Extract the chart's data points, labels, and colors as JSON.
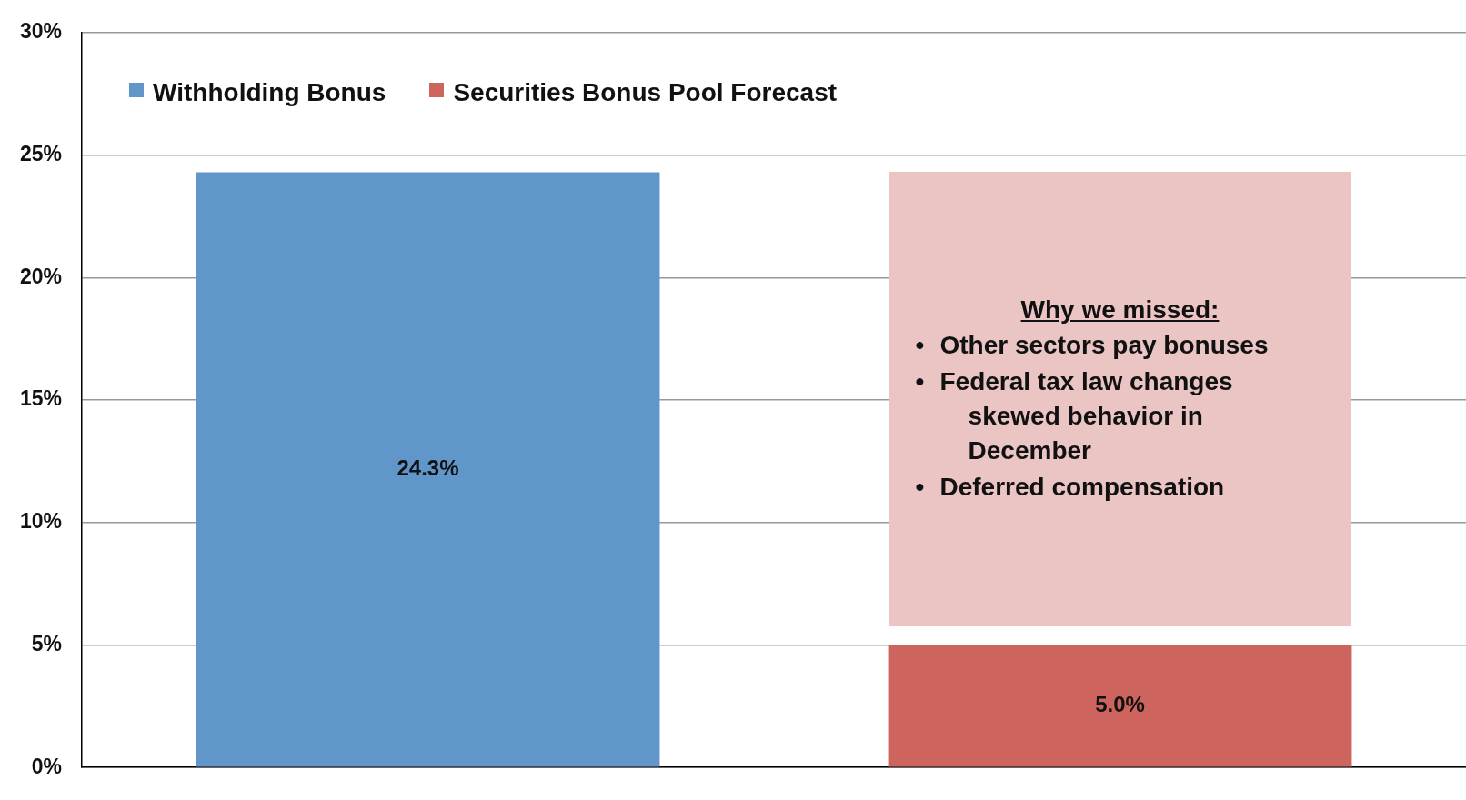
{
  "chart_data": {
    "type": "bar",
    "categories": [
      null,
      null
    ],
    "series": [
      {
        "name": "Withholding Bonus",
        "color": "#6096c9",
        "values": [
          24.3,
          null
        ],
        "value_labels": [
          "24.3%",
          null
        ]
      },
      {
        "name": "Securities Bonus Pool Forecast",
        "color": "#cd655e",
        "values": [
          null,
          5.0
        ],
        "value_labels": [
          null,
          "5.0%"
        ]
      }
    ],
    "ylim": [
      0,
      30
    ],
    "yticks": [
      {
        "value": 0,
        "label": "0%"
      },
      {
        "value": 5,
        "label": "5%"
      },
      {
        "value": 10,
        "label": "10%"
      },
      {
        "value": 15,
        "label": "15%"
      },
      {
        "value": 20,
        "label": "20%"
      },
      {
        "value": 25,
        "label": "25%"
      },
      {
        "value": 30,
        "label": "30%"
      }
    ],
    "grid": "y",
    "legend": "top left",
    "annotations": [
      "Why we missed:",
      "•\tOther sectors pay bonuses",
      "•\tFederal tax law changes skewed behavior in December",
      "•\tDeferred compensation"
    ]
  }
}
